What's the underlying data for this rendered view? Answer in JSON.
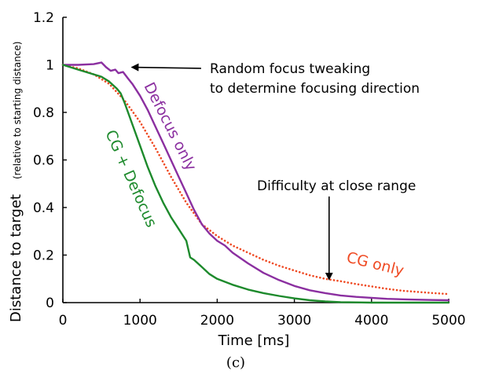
{
  "chart_data": {
    "type": "line",
    "xlabel": "Time [ms]",
    "ylabel": "Distance to target",
    "ylabel_sub": "(relative to starting distance)",
    "xlim": [
      0,
      5000
    ],
    "ylim": [
      0,
      1.2
    ],
    "x_ticks": [
      0,
      1000,
      2000,
      3000,
      4000,
      5000
    ],
    "y_ticks": [
      0,
      0.2,
      0.4,
      0.6,
      0.8,
      1,
      1.2
    ],
    "x_tick_labels": [
      "0",
      "1000",
      "2000",
      "3000",
      "4000",
      "5000"
    ],
    "y_tick_labels": [
      "0",
      "0.2",
      "0.4",
      "0.6",
      "0.8",
      "1",
      "1.2"
    ],
    "grid": false,
    "series": [
      {
        "name": "Defocus only",
        "color": "#8b2fa0",
        "style": "solid",
        "x": [
          0,
          200,
          400,
          500,
          560,
          620,
          680,
          720,
          780,
          850,
          900,
          1000,
          1100,
          1200,
          1300,
          1400,
          1500,
          1600,
          1700,
          1800,
          1900,
          2000,
          2100,
          2200,
          2400,
          2600,
          2800,
          3000,
          3200,
          3400,
          3600,
          3800,
          4000,
          4200,
          4500,
          4800,
          5000
        ],
        "y": [
          1.0,
          1.0,
          1.003,
          1.01,
          0.99,
          0.975,
          0.98,
          0.965,
          0.97,
          0.94,
          0.92,
          0.87,
          0.81,
          0.74,
          0.67,
          0.6,
          0.53,
          0.46,
          0.39,
          0.33,
          0.29,
          0.26,
          0.24,
          0.21,
          0.165,
          0.125,
          0.095,
          0.07,
          0.052,
          0.04,
          0.03,
          0.024,
          0.02,
          0.016,
          0.013,
          0.011,
          0.01
        ]
      },
      {
        "name": "CG + Defocus",
        "color": "#1d8a2c",
        "style": "solid",
        "x": [
          0,
          200,
          400,
          500,
          600,
          700,
          750,
          800,
          900,
          1000,
          1100,
          1200,
          1300,
          1400,
          1500,
          1600,
          1650,
          1700,
          1800,
          1900,
          2000,
          2200,
          2400,
          2600,
          2800,
          3000,
          3200,
          3400,
          3600,
          3800,
          4000,
          4300,
          4600,
          5000
        ],
        "y": [
          1.0,
          0.98,
          0.96,
          0.95,
          0.93,
          0.9,
          0.88,
          0.84,
          0.75,
          0.66,
          0.57,
          0.49,
          0.42,
          0.36,
          0.31,
          0.26,
          0.19,
          0.18,
          0.15,
          0.12,
          0.1,
          0.075,
          0.055,
          0.04,
          0.028,
          0.018,
          0.01,
          0.005,
          0.002,
          0.001,
          0.0,
          0.0,
          0.0,
          0.0
        ]
      },
      {
        "name": "CG only",
        "color": "#ef4a23",
        "style": "dotted",
        "x": [
          0,
          200,
          400,
          600,
          800,
          1000,
          1200,
          1400,
          1600,
          1800,
          2000,
          2200,
          2400,
          2600,
          2800,
          3000,
          3200,
          3400,
          3600,
          3800,
          4000,
          4200,
          4400,
          4600,
          4800,
          5000
        ],
        "y": [
          1.0,
          0.985,
          0.96,
          0.92,
          0.85,
          0.76,
          0.65,
          0.53,
          0.42,
          0.33,
          0.28,
          0.24,
          0.21,
          0.18,
          0.155,
          0.135,
          0.115,
          0.1,
          0.09,
          0.078,
          0.068,
          0.058,
          0.05,
          0.045,
          0.04,
          0.036
        ]
      }
    ],
    "annotations": [
      {
        "text_lines": [
          "Random focus tweaking",
          "to determine focusing direction"
        ],
        "arrow_target_x": 880,
        "arrow_target_y": 0.98
      },
      {
        "text_lines": [
          "Difficulty at close range"
        ],
        "arrow_target_x": 3450,
        "arrow_target_y": 0.08
      }
    ]
  },
  "caption": "(c)"
}
